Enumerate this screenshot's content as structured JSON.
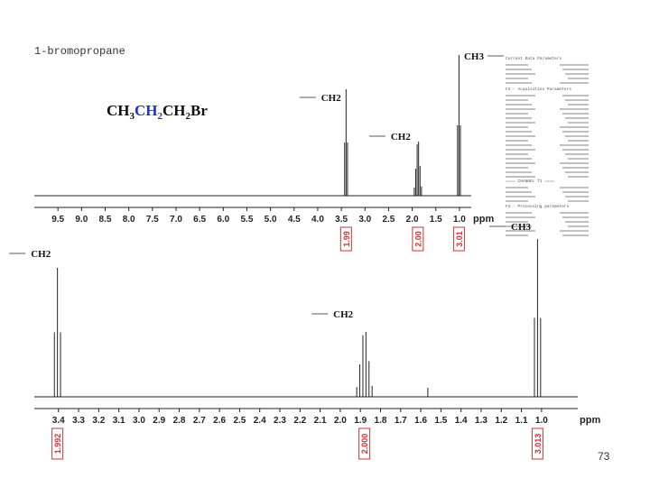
{
  "compound_name": "1-bromopropane",
  "formula_parts": [
    "CH",
    "3",
    "CH",
    "2",
    "CH",
    "2",
    "Br"
  ],
  "param_header_1": "Current Data Parameters",
  "param_header_2": "F2 - Acquisition Parameters",
  "param_header_3": "==== CHANNEL f1 ====",
  "param_header_4": "F2 - Processing parameters",
  "page_number": "73",
  "chart_data": [
    {
      "type": "line",
      "title": "1-bromopropane",
      "xlabel": "ppm",
      "ylabel": "",
      "x_ticks": [
        "9.5",
        "9.0",
        "8.5",
        "8.0",
        "7.5",
        "7.0",
        "6.5",
        "6.0",
        "5.5",
        "5.0",
        "4.5",
        "4.0",
        "3.5",
        "3.0",
        "2.5",
        "2.0",
        "1.5",
        "1.0"
      ],
      "xlim": [
        10.0,
        0.75
      ],
      "x_reversed": true,
      "grid": false,
      "peaks": [
        {
          "shift": 3.4,
          "multiplicity": "triplet",
          "label": "CH2",
          "integral": "1.99",
          "label_side": "left",
          "label_level": "mid"
        },
        {
          "shift": 1.88,
          "multiplicity": "sextet",
          "label": "CH2",
          "integral": "2.00",
          "label_side": "left",
          "label_level": "low"
        },
        {
          "shift": 1.01,
          "multiplicity": "triplet",
          "label": "CH3",
          "integral": "3.01",
          "label_side": "right",
          "label_level": "high"
        }
      ]
    },
    {
      "type": "line",
      "title": "",
      "xlabel": "ppm",
      "ylabel": "",
      "x_ticks": [
        "3.4",
        "3.3",
        "3.2",
        "3.1",
        "3.0",
        "2.9",
        "2.8",
        "2.7",
        "2.6",
        "2.5",
        "2.4",
        "2.3",
        "2.2",
        "2.1",
        "2.0",
        "1.9",
        "1.8",
        "1.7",
        "1.6",
        "1.5",
        "1.4",
        "1.3",
        "1.2",
        "1.1",
        "1.0"
      ],
      "xlim": [
        3.52,
        0.82
      ],
      "x_reversed": true,
      "grid": false,
      "peaks": [
        {
          "shift": 3.405,
          "multiplicity": "triplet",
          "label": "CH2",
          "integral": "1.992",
          "label_side": "left",
          "label_level": "high"
        },
        {
          "shift": 1.88,
          "multiplicity": "sextet",
          "label": "CH2",
          "integral": "2.000",
          "label_side": "left",
          "label_level": "mid"
        },
        {
          "shift": 1.02,
          "multiplicity": "triplet",
          "label": "CH3",
          "integral": "3.013",
          "label_side": "left",
          "label_level": "top"
        }
      ],
      "minor_peaks": [
        1.565
      ]
    }
  ],
  "colors": {
    "spectrum": "#222222",
    "formula_highlight": "#2233bb",
    "integral_box": "#cc3333",
    "tick_label": "#222222"
  }
}
